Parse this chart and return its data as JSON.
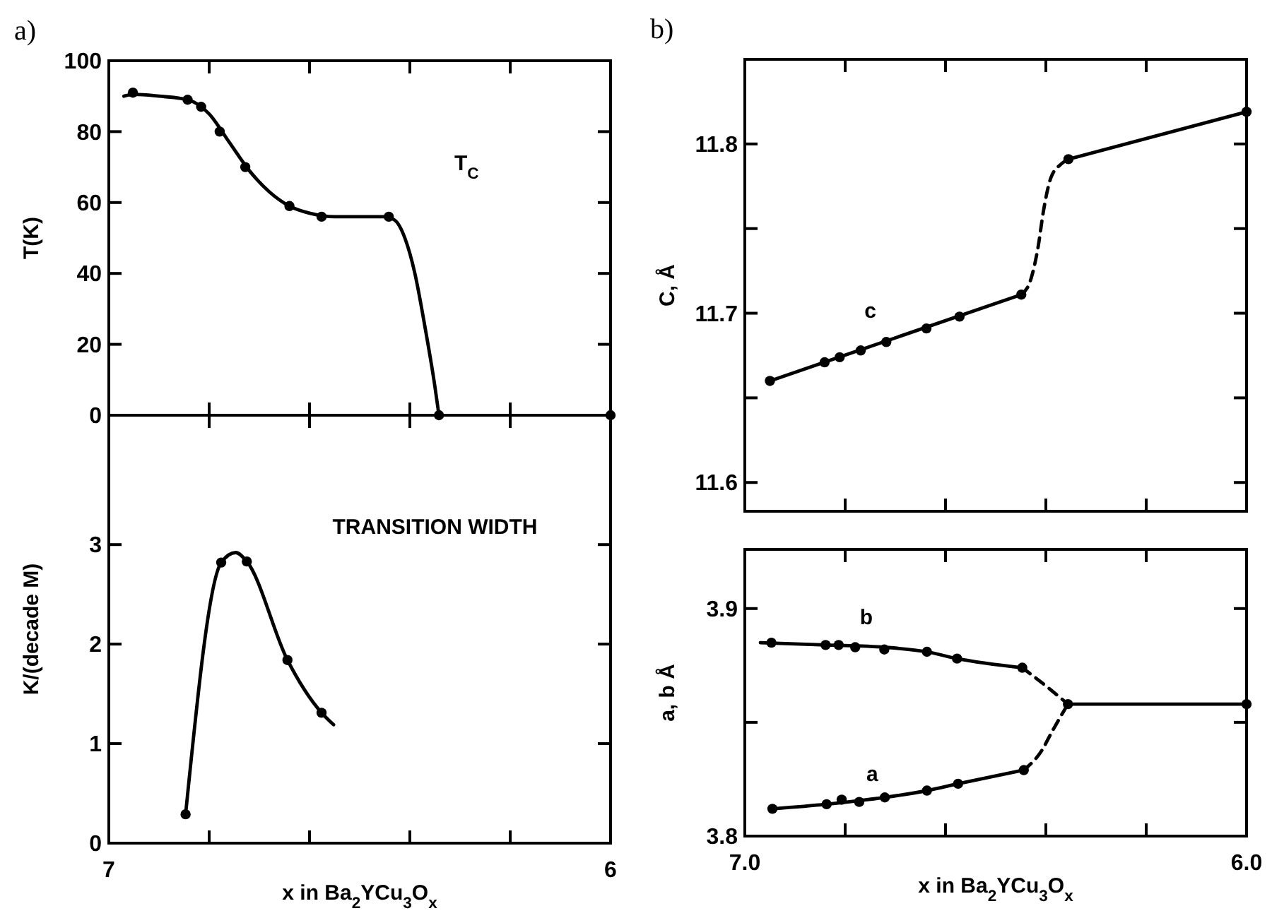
{
  "chart_data": [
    {
      "type": "line",
      "title": "a)",
      "ylabel": "T(K)",
      "xlim": [
        7,
        6
      ],
      "ylim": [
        0,
        100
      ],
      "xticks": [
        {
          "value": 7,
          "label": null
        },
        {
          "value": 6.8,
          "label": null
        },
        {
          "value": 6.6,
          "label": null
        },
        {
          "value": 6.4,
          "label": null
        },
        {
          "value": 6.2,
          "label": null
        },
        {
          "value": 6,
          "label": null
        }
      ],
      "yticks": [
        0,
        20,
        40,
        60,
        80,
        100
      ],
      "tick_labels": "y",
      "annotations": [
        "T$_{C}$"
      ],
      "series": [
        {
          "color": "#000000",
          "line_style": "solid",
          "x": [
            6.97,
            6.95,
            6.9,
            6.843,
            6.8,
            6.76,
            6.72,
            6.68,
            6.64,
            6.6,
            6.55,
            6.45,
            6.43,
            6.41,
            6.39,
            6.37,
            6.35,
            6.342
          ],
          "values": [
            90,
            90.5,
            90,
            89,
            85,
            77,
            69,
            63,
            59,
            57,
            56,
            56,
            55,
            50,
            40,
            25,
            8,
            0
          ]
        },
        {
          "type": "scatter",
          "color": "#000000",
          "marker": "circle",
          "x": [
            6.952,
            6.843,
            6.816,
            6.779,
            6.728,
            6.64,
            6.576,
            6.442,
            6.342,
            6.0
          ],
          "values": [
            91,
            89,
            87,
            80,
            70,
            59,
            56,
            56,
            0,
            0
          ]
        }
      ]
    },
    {
      "type": "line",
      "ylabel": "K/(decade M)",
      "xlabel": "x in Ba$_{2}$YCu$_{3}$O$_{x}$",
      "xlim": [
        7,
        6
      ],
      "ylim": [
        0,
        4.3
      ],
      "xticks": [
        7,
        {
          "value": 6.8,
          "label": null
        },
        {
          "value": 6.6,
          "label": null
        },
        {
          "value": 6.4,
          "label": null
        },
        {
          "value": 6.2,
          "label": null
        },
        6
      ],
      "yticks": [
        0,
        1,
        2,
        3
      ],
      "annotations": [
        "TRANSITION WIDTH"
      ],
      "series": [
        {
          "type": "line",
          "color": "#000000",
          "line_style": "solid",
          "x": [
            6.847,
            6.776,
            6.747,
            6.725,
            6.644,
            6.576,
            6.552
          ],
          "values": [
            0.29,
            2.82,
            2.92,
            2.83,
            1.84,
            1.31,
            1.19
          ]
        },
        {
          "type": "scatter",
          "color": "#000000",
          "marker": "circle",
          "x": [
            6.847,
            6.776,
            6.725,
            6.644,
            6.576
          ],
          "values": [
            0.29,
            2.82,
            2.83,
            1.84,
            1.31
          ]
        }
      ]
    },
    {
      "type": "line",
      "title": "b)",
      "ylabel": "C, Å",
      "xlim": [
        7,
        6
      ],
      "ylim": [
        11.583,
        11.85
      ],
      "xticks": [
        {
          "value": 7,
          "label": null
        },
        {
          "value": 6.8,
          "label": null
        },
        {
          "value": 6.6,
          "label": null
        },
        {
          "value": 6.4,
          "label": null
        },
        {
          "value": 6.2,
          "label": null
        },
        {
          "value": 6,
          "label": null
        }
      ],
      "yticks": [
        11.6,
        {
          "value": 11.65,
          "label": null
        },
        11.7,
        {
          "value": 11.75,
          "label": null
        },
        11.8
      ],
      "tick_labels": "y",
      "annotations": [
        "c"
      ],
      "series": [
        {
          "type": "line",
          "color": "#000000",
          "line_style": "solid",
          "x": [
            6.95,
            6.449
          ],
          "values": [
            11.66,
            11.711
          ]
        },
        {
          "type": "line",
          "color": "#000000",
          "line_style": "dashed",
          "x": [
            6.449,
            6.43,
            6.415,
            6.405,
            6.39,
            6.37,
            6.355
          ],
          "values": [
            11.711,
            11.72,
            11.74,
            11.76,
            11.78,
            11.788,
            11.791
          ]
        },
        {
          "type": "line",
          "color": "#000000",
          "line_style": "solid",
          "x": [
            6.355,
            6.0
          ],
          "values": [
            11.791,
            11.819
          ]
        },
        {
          "type": "scatter",
          "color": "#000000",
          "marker": "circle",
          "x": [
            6.95,
            6.841,
            6.811,
            6.769,
            6.718,
            6.638,
            6.572,
            6.449,
            6.355,
            6.0
          ],
          "values": [
            11.66,
            11.671,
            11.674,
            11.678,
            11.683,
            11.691,
            11.698,
            11.711,
            11.791,
            11.819
          ]
        }
      ]
    },
    {
      "type": "line",
      "ylabel": "a, b Å",
      "xlabel": "x  in  Ba$_{2}$YCu$_{3}$O$_{x}$",
      "xlim": [
        7,
        6
      ],
      "ylim": [
        3.8,
        3.926
      ],
      "xticks": [
        {
          "value": 7,
          "label": "7.0"
        },
        {
          "value": 6.8,
          "label": null
        },
        {
          "value": 6.6,
          "label": null
        },
        {
          "value": 6.4,
          "label": null
        },
        {
          "value": 6.2,
          "label": null
        },
        {
          "value": 6,
          "label": "6.0"
        }
      ],
      "yticks": [
        3.8,
        {
          "value": 3.85,
          "label": null
        },
        3.9
      ],
      "annotations": [
        "b",
        "a"
      ],
      "series": [
        {
          "type": "line",
          "color": "#000000",
          "line_style": "solid",
          "x": [
            6.969,
            6.839,
            6.722,
            6.637,
            6.577,
            6.447
          ],
          "values": [
            3.885,
            3.884,
            3.883,
            3.881,
            3.878,
            3.874
          ]
        },
        {
          "type": "line",
          "color": "#000000",
          "line_style": "dashed",
          "x": [
            6.447,
            6.4,
            6.356
          ],
          "values": [
            3.874,
            3.866,
            3.858
          ]
        },
        {
          "type": "line",
          "color": "#000000",
          "line_style": "solid",
          "x": [
            6.945,
            6.837,
            6.721,
            6.637,
            6.575,
            6.444
          ],
          "values": [
            3.812,
            3.814,
            3.817,
            3.82,
            3.823,
            3.829
          ]
        },
        {
          "type": "line",
          "color": "#000000",
          "line_style": "dashed",
          "x": [
            6.444,
            6.41,
            6.385,
            6.356
          ],
          "values": [
            3.829,
            3.837,
            3.847,
            3.858
          ]
        },
        {
          "type": "line",
          "color": "#000000",
          "line_style": "solid",
          "x": [
            6.356,
            6.0
          ],
          "values": [
            3.858,
            3.858
          ]
        },
        {
          "type": "scatter",
          "color": "#000000",
          "marker": "circle",
          "x": [
            6.947,
            6.839,
            6.813,
            6.78,
            6.722,
            6.637,
            6.577,
            6.447,
            6.356,
            6.0
          ],
          "values": [
            3.885,
            3.884,
            3.884,
            3.883,
            3.882,
            3.881,
            3.878,
            3.874,
            3.858,
            3.858
          ]
        },
        {
          "type": "scatter",
          "color": "#000000",
          "marker": "circle",
          "x": [
            6.945,
            6.837,
            6.807,
            6.772,
            6.721,
            6.637,
            6.575,
            6.444
          ],
          "values": [
            3.812,
            3.814,
            3.816,
            3.815,
            3.817,
            3.82,
            3.823,
            3.829
          ]
        }
      ]
    }
  ]
}
